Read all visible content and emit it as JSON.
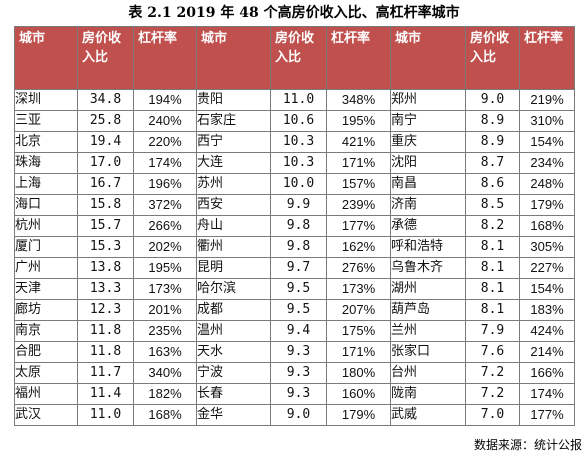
{
  "title": "表 2.1  2019 年 48 个高房价收入比、高杠杆率城市",
  "headers": [
    "城市",
    "房价收入比",
    "杠杆率",
    "城市",
    "房价收入比",
    "杠杆率",
    "城市",
    "房价收入比",
    "杠杆率"
  ],
  "rows": [
    [
      [
        "深圳",
        "34.8",
        "194%"
      ],
      [
        "贵阳",
        "11.0",
        "348%"
      ],
      [
        "郑州",
        "9.0",
        "219%"
      ]
    ],
    [
      [
        "三亚",
        "25.8",
        "240%"
      ],
      [
        "石家庄",
        "10.6",
        "195%"
      ],
      [
        "南宁",
        "8.9",
        "310%"
      ]
    ],
    [
      [
        "北京",
        "19.4",
        "220%"
      ],
      [
        "西宁",
        "10.3",
        "421%"
      ],
      [
        "重庆",
        "8.9",
        "154%"
      ]
    ],
    [
      [
        "珠海",
        "17.0",
        "174%"
      ],
      [
        "大连",
        "10.3",
        "171%"
      ],
      [
        "沈阳",
        "8.7",
        "234%"
      ]
    ],
    [
      [
        "上海",
        "16.7",
        "196%"
      ],
      [
        "苏州",
        "10.0",
        "157%"
      ],
      [
        "南昌",
        "8.6",
        "248%"
      ]
    ],
    [
      [
        "海口",
        "15.8",
        "372%"
      ],
      [
        "西安",
        "9.9",
        "239%"
      ],
      [
        "济南",
        "8.5",
        "179%"
      ]
    ],
    [
      [
        "杭州",
        "15.7",
        "266%"
      ],
      [
        "舟山",
        "9.8",
        "177%"
      ],
      [
        "承德",
        "8.2",
        "168%"
      ]
    ],
    [
      [
        "厦门",
        "15.3",
        "202%"
      ],
      [
        "衢州",
        "9.8",
        "162%"
      ],
      [
        "呼和浩特",
        "8.1",
        "305%"
      ]
    ],
    [
      [
        "广州",
        "13.8",
        "195%"
      ],
      [
        "昆明",
        "9.7",
        "276%"
      ],
      [
        "乌鲁木齐",
        "8.1",
        "227%"
      ]
    ],
    [
      [
        "天津",
        "13.3",
        "173%"
      ],
      [
        "哈尔滨",
        "9.5",
        "173%"
      ],
      [
        "湖州",
        "8.1",
        "154%"
      ]
    ],
    [
      [
        "廊坊",
        "12.3",
        "201%"
      ],
      [
        "成都",
        "9.5",
        "207%"
      ],
      [
        "葫芦岛",
        "8.1",
        "183%"
      ]
    ],
    [
      [
        "南京",
        "11.8",
        "235%"
      ],
      [
        "温州",
        "9.4",
        "175%"
      ],
      [
        "兰州",
        "7.9",
        "424%"
      ]
    ],
    [
      [
        "合肥",
        "11.8",
        "163%"
      ],
      [
        "天水",
        "9.3",
        "171%"
      ],
      [
        "张家口",
        "7.6",
        "214%"
      ]
    ],
    [
      [
        "太原",
        "11.7",
        "340%"
      ],
      [
        "宁波",
        "9.3",
        "180%"
      ],
      [
        "台州",
        "7.2",
        "166%"
      ]
    ],
    [
      [
        "福州",
        "11.4",
        "182%"
      ],
      [
        "长春",
        "9.3",
        "160%"
      ],
      [
        "陇南",
        "7.2",
        "174%"
      ]
    ],
    [
      [
        "武汉",
        "11.0",
        "168%"
      ],
      [
        "金华",
        "9.0",
        "179%"
      ],
      [
        "武威",
        "7.0",
        "177%"
      ]
    ]
  ],
  "source": "数据来源：统计公报",
  "colors": {
    "header_bg": "#c0504d",
    "header_text": "#ffffff",
    "border": "#7a7a7a"
  }
}
